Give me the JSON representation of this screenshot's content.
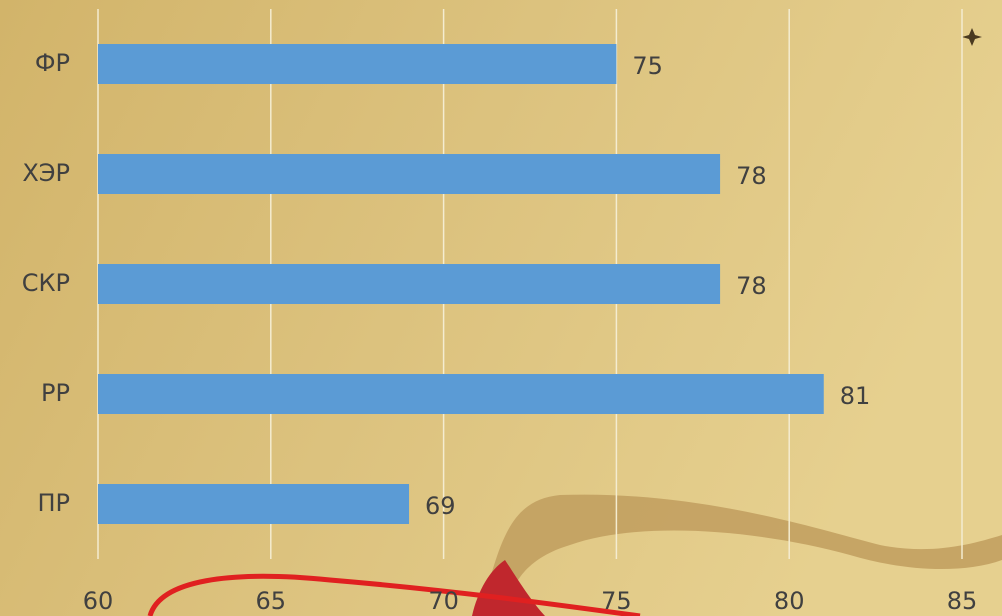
{
  "chart_data": {
    "type": "bar",
    "orientation": "horizontal",
    "categories": [
      "ФР",
      "ХЭР",
      "СКР",
      "РР",
      "ПР"
    ],
    "values": [
      75,
      78,
      78,
      81,
      69
    ],
    "color": "#5b9bd5",
    "xlim": [
      60,
      85
    ],
    "xticks": [
      60,
      65,
      70,
      75,
      80,
      85
    ],
    "grid": true
  }
}
